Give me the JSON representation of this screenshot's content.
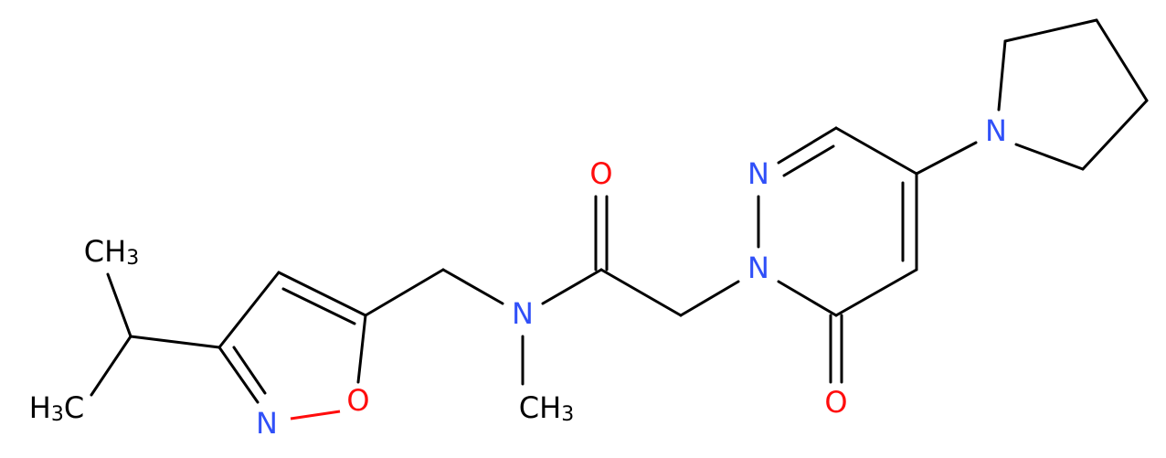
{
  "atoms": [
    {
      "text": "CH",
      "subscript": "3"
    },
    {
      "prefix": "H",
      "subscript": "3",
      "text": "C"
    },
    {
      "text": "N"
    },
    {
      "text": "O"
    },
    {
      "text": "N"
    },
    {
      "text": "CH",
      "subscript": "3"
    },
    {
      "text": "O"
    },
    {
      "text": "N"
    },
    {
      "text": "N"
    },
    {
      "text": "O"
    },
    {
      "text": "N"
    }
  ]
}
